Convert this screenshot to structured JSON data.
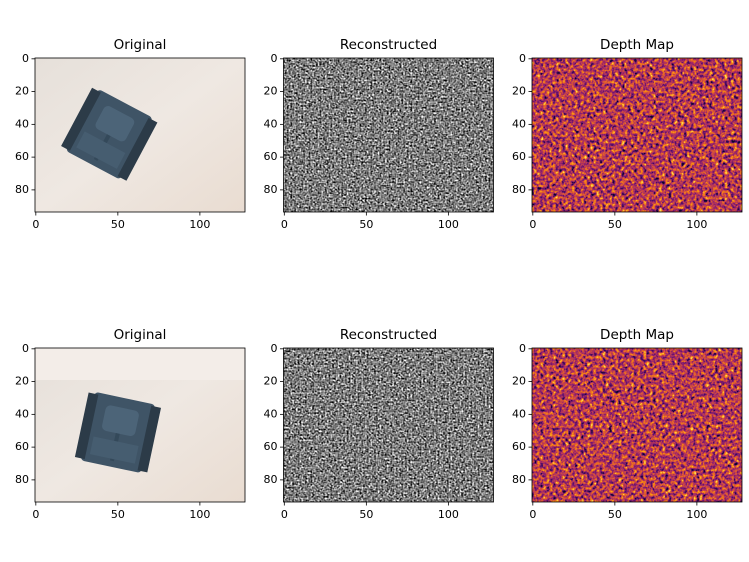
{
  "chart_data": [
    {
      "type": "image",
      "title": "Original",
      "xlim": [
        -0.5,
        127.5
      ],
      "ylim": [
        93.5,
        -0.5
      ],
      "xticks": [
        0,
        50,
        100
      ],
      "yticks": [
        0,
        20,
        40,
        60,
        80
      ]
    },
    {
      "type": "image",
      "title": "Reconstructed",
      "cmap": "gray",
      "xlim": [
        -0.5,
        127.5
      ],
      "ylim": [
        93.5,
        -0.5
      ],
      "xticks": [
        0,
        50,
        100
      ],
      "yticks": [
        0,
        20,
        40,
        60,
        80
      ]
    },
    {
      "type": "image",
      "title": "Depth Map",
      "cmap": "inferno",
      "xlim": [
        -0.5,
        127.5
      ],
      "ylim": [
        93.5,
        -0.5
      ],
      "xticks": [
        0,
        50,
        100
      ],
      "yticks": [
        0,
        20,
        40,
        60,
        80
      ]
    },
    {
      "type": "image",
      "title": "Original",
      "xlim": [
        -0.5,
        127.5
      ],
      "ylim": [
        93.5,
        -0.5
      ],
      "xticks": [
        0,
        50,
        100
      ],
      "yticks": [
        0,
        20,
        40,
        60,
        80
      ]
    },
    {
      "type": "image",
      "title": "Reconstructed",
      "cmap": "gray",
      "xlim": [
        -0.5,
        127.5
      ],
      "ylim": [
        93.5,
        -0.5
      ],
      "xticks": [
        0,
        50,
        100
      ],
      "yticks": [
        0,
        20,
        40,
        60,
        80
      ]
    },
    {
      "type": "image",
      "title": "Depth Map",
      "cmap": "inferno",
      "xlim": [
        -0.5,
        127.5
      ],
      "ylim": [
        93.5,
        -0.5
      ],
      "xticks": [
        0,
        50,
        100
      ],
      "yticks": [
        0,
        20,
        40,
        60,
        80
      ]
    }
  ]
}
